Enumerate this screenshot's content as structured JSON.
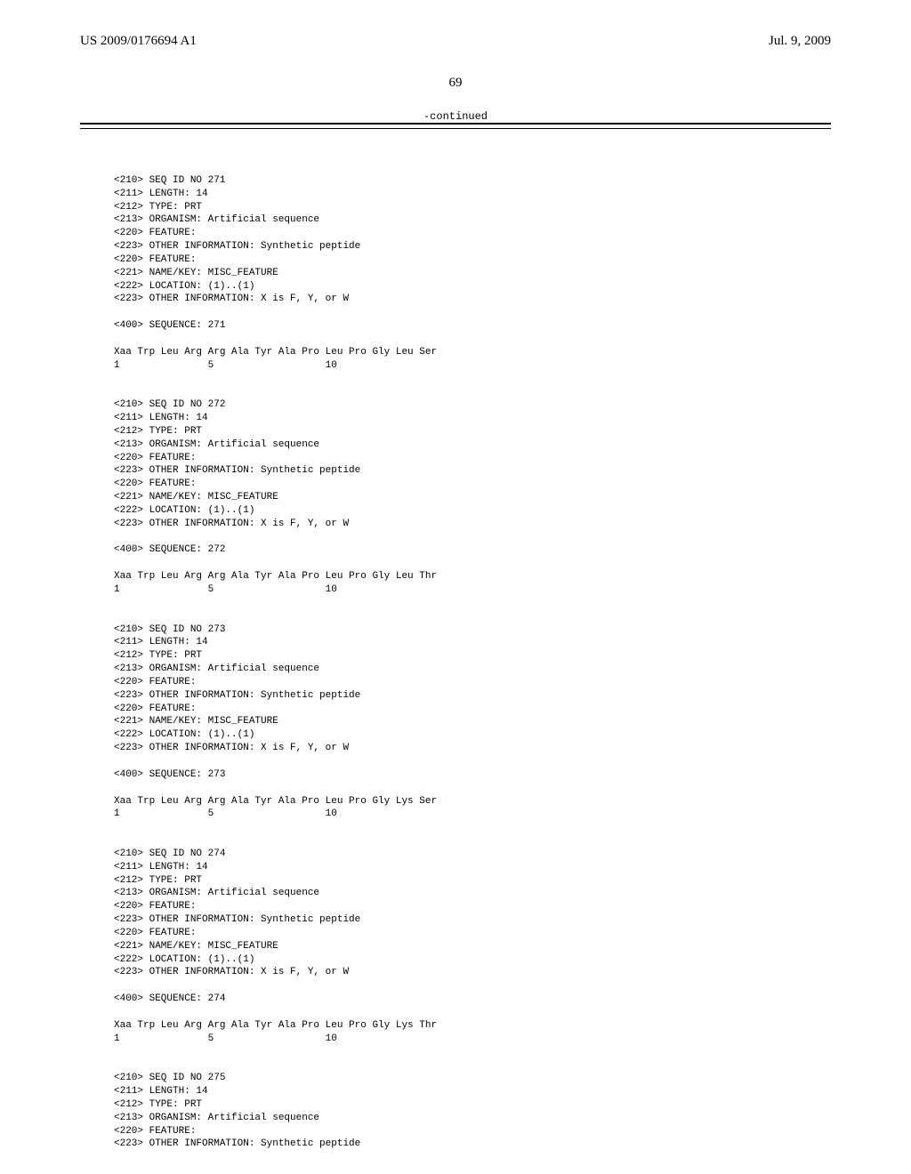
{
  "header": {
    "left": "US 2009/0176694 A1",
    "right": "Jul. 9, 2009"
  },
  "page_number": "69",
  "continued_label": "-continued",
  "listing": "\n<210> SEQ ID NO 271\n<211> LENGTH: 14\n<212> TYPE: PRT\n<213> ORGANISM: Artificial sequence\n<220> FEATURE:\n<223> OTHER INFORMATION: Synthetic peptide\n<220> FEATURE:\n<221> NAME/KEY: MISC_FEATURE\n<222> LOCATION: (1)..(1)\n<223> OTHER INFORMATION: X is F, Y, or W\n\n<400> SEQUENCE: 271\n\nXaa Trp Leu Arg Arg Ala Tyr Ala Pro Leu Pro Gly Leu Ser\n1               5                   10\n\n\n<210> SEQ ID NO 272\n<211> LENGTH: 14\n<212> TYPE: PRT\n<213> ORGANISM: Artificial sequence\n<220> FEATURE:\n<223> OTHER INFORMATION: Synthetic peptide\n<220> FEATURE:\n<221> NAME/KEY: MISC_FEATURE\n<222> LOCATION: (1)..(1)\n<223> OTHER INFORMATION: X is F, Y, or W\n\n<400> SEQUENCE: 272\n\nXaa Trp Leu Arg Arg Ala Tyr Ala Pro Leu Pro Gly Leu Thr\n1               5                   10\n\n\n<210> SEQ ID NO 273\n<211> LENGTH: 14\n<212> TYPE: PRT\n<213> ORGANISM: Artificial sequence\n<220> FEATURE:\n<223> OTHER INFORMATION: Synthetic peptide\n<220> FEATURE:\n<221> NAME/KEY: MISC_FEATURE\n<222> LOCATION: (1)..(1)\n<223> OTHER INFORMATION: X is F, Y, or W\n\n<400> SEQUENCE: 273\n\nXaa Trp Leu Arg Arg Ala Tyr Ala Pro Leu Pro Gly Lys Ser\n1               5                   10\n\n\n<210> SEQ ID NO 274\n<211> LENGTH: 14\n<212> TYPE: PRT\n<213> ORGANISM: Artificial sequence\n<220> FEATURE:\n<223> OTHER INFORMATION: Synthetic peptide\n<220> FEATURE:\n<221> NAME/KEY: MISC_FEATURE\n<222> LOCATION: (1)..(1)\n<223> OTHER INFORMATION: X is F, Y, or W\n\n<400> SEQUENCE: 274\n\nXaa Trp Leu Arg Arg Ala Tyr Ala Pro Leu Pro Gly Lys Thr\n1               5                   10\n\n\n<210> SEQ ID NO 275\n<211> LENGTH: 14\n<212> TYPE: PRT\n<213> ORGANISM: Artificial sequence\n<220> FEATURE:\n<223> OTHER INFORMATION: Synthetic peptide"
}
